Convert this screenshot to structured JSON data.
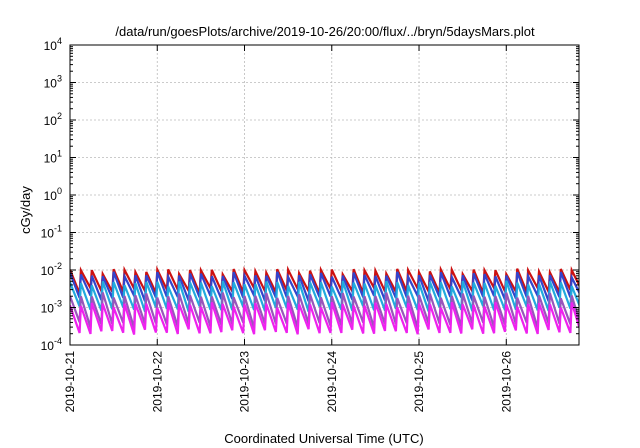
{
  "chart_data": {
    "type": "line",
    "title": "/data/run/goesPlots/archive/2019-10-26/20:00/flux/../bryn/5daysMars.plot",
    "xlabel": "Coordinated Universal Time (UTC)",
    "ylabel": "cGy/day",
    "yscale": "log",
    "ylim": [
      0.0001,
      10000
    ],
    "xlim": [
      "2019-10-21T00:00",
      "2019-10-26T20:00"
    ],
    "y_ticks": [
      {
        "base": "10",
        "exp": "4"
      },
      {
        "base": "10",
        "exp": "3"
      },
      {
        "base": "10",
        "exp": "2"
      },
      {
        "base": "10",
        "exp": "1"
      },
      {
        "base": "10",
        "exp": "0"
      },
      {
        "base": "10",
        "exp": "-1"
      },
      {
        "base": "10",
        "exp": "-2"
      },
      {
        "base": "10",
        "exp": "-3"
      },
      {
        "base": "10",
        "exp": "-4"
      }
    ],
    "x_ticks": [
      "2019-10-21",
      "2019-10-22",
      "2019-10-23",
      "2019-10-24",
      "2019-10-25",
      "2019-10-26"
    ],
    "grid": true,
    "cycles_per_day": 8,
    "series": [
      {
        "color": "#cc1111",
        "peak": 0.0095,
        "trough": 0.0028
      },
      {
        "color": "#3344cc",
        "peak": 0.0075,
        "trough": 0.0018
      },
      {
        "color": "#22aadd",
        "peak": 0.0045,
        "trough": 0.0009
      },
      {
        "color": "#9955bb",
        "peak": 0.0021,
        "trough": 0.00035
      },
      {
        "color": "#ee22ee",
        "peak": 0.0012,
        "trough": 0.00022
      }
    ]
  }
}
